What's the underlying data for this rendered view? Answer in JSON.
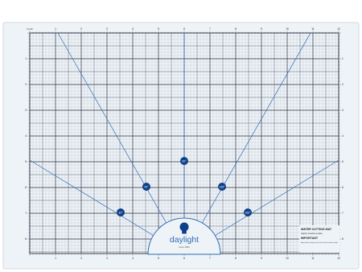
{
  "mat": {
    "brand": "daylight",
    "brand_tagline": "since 1991",
    "corner_label": "0 inch",
    "angle_markers": [
      "90°",
      "45°",
      "135°",
      "30°",
      "150°"
    ],
    "top_scale": [
      "1",
      "2",
      "3",
      "4",
      "5",
      "6",
      "7",
      "8",
      "9",
      "10",
      "11",
      "12"
    ],
    "bottom_scale": [
      "1",
      "2",
      "3",
      "4",
      "5",
      "6",
      "7",
      "8",
      "9",
      "10",
      "11",
      "12"
    ],
    "side_scale": [
      "1",
      "2",
      "3",
      "4",
      "5",
      "6",
      "7",
      "8"
    ],
    "info_panel": {
      "title": "WATER CUTTING MAT",
      "subtitle": "Highly durable quality",
      "important_label": "IMPORTANT",
      "note": "Always keep the cutting mat on a flat surface. Store out of direct sunlight."
    },
    "colors": {
      "mat_bg": "#eef3f8",
      "grid_major": "#2e3340",
      "grid_minor": "#7d8594",
      "accent_blue": "#2f6db6",
      "dot_blue": "#0d3f8a"
    }
  }
}
